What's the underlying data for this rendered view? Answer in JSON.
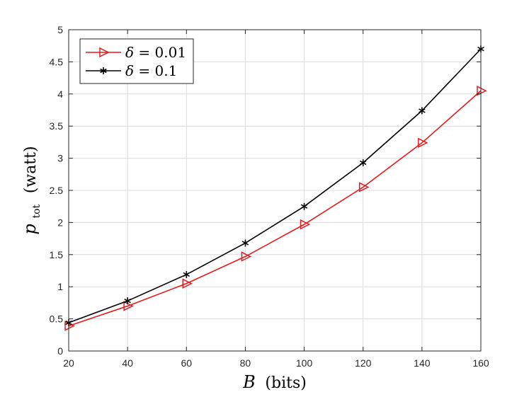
{
  "chart_data": {
    "type": "line",
    "title": "",
    "xlabel": {
      "symbol": "B",
      "unit": "(bits)"
    },
    "ylabel": {
      "symbol": "p",
      "subscript": "tot",
      "unit": "(watt)"
    },
    "x": [
      20,
      40,
      60,
      80,
      100,
      120,
      140,
      160
    ],
    "xlim": [
      20,
      160
    ],
    "ylim": [
      0,
      5
    ],
    "xticks": [
      "20",
      "40",
      "60",
      "80",
      "100",
      "120",
      "140",
      "160"
    ],
    "yticks": [
      "0",
      "0.5",
      "1",
      "1.5",
      "2",
      "2.5",
      "3",
      "3.5",
      "4",
      "4.5",
      "5"
    ],
    "grid": true,
    "legend_position": "top-left",
    "series": [
      {
        "name": "δ = 0.01",
        "marker": "triangle-right",
        "color": "#e41a1c",
        "values": [
          0.39,
          0.7,
          1.05,
          1.47,
          1.97,
          2.55,
          3.24,
          4.05
        ]
      },
      {
        "name": "δ = 0.1",
        "marker": "asterisk",
        "color": "#000000",
        "values": [
          0.44,
          0.78,
          1.19,
          1.68,
          2.25,
          2.93,
          3.74,
          4.7
        ]
      }
    ]
  }
}
